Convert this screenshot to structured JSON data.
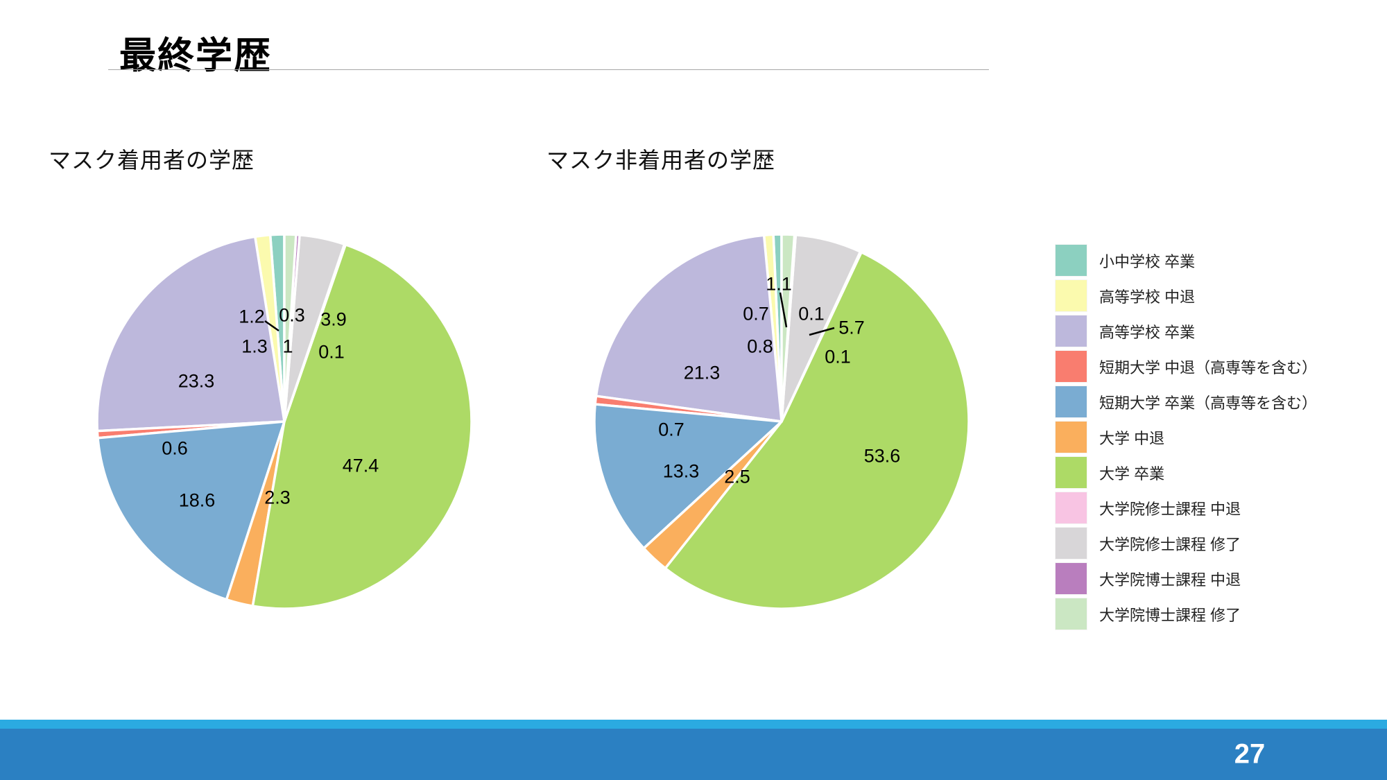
{
  "page": {
    "title": "最終学歴",
    "page_number": "27"
  },
  "chart_data": {
    "type": "pie",
    "legend_position": "right",
    "start_angle": "top",
    "direction": "counterclockwise",
    "categories": [
      "小中学校 卒業",
      "高等学校 中退",
      "高等学校 卒業",
      "短期大学 中退（高専等を含む）",
      "短期大学 卒業（高専等を含む）",
      "大学 中退",
      "大学 卒業",
      "大学院修士課程 中退",
      "大学院修士課程 修了",
      "大学院博士課程 中退",
      "大学院博士課程 修了"
    ],
    "colors": [
      "#8CD0C0",
      "#FBFAAE",
      "#BDB8DC",
      "#F97D6F",
      "#7AACD2",
      "#FAAF5D",
      "#ADDA66",
      "#F8C4E3",
      "#D8D6D8",
      "#B97EBE",
      "#CBE7C3"
    ],
    "pies": [
      {
        "title": "マスク着用者の学歴",
        "values": [
          1.2,
          1.3,
          23.3,
          0.6,
          18.6,
          2.3,
          47.4,
          0.1,
          3.9,
          0.3,
          1.0
        ],
        "display_labels": [
          "1.2",
          "1.3",
          "23.3",
          "0.6",
          "18.6",
          "2.3",
          "47.4",
          "0.1",
          "3.9",
          "0.3",
          "1"
        ]
      },
      {
        "title": "マスク非着用者の学歴",
        "values": [
          0.7,
          0.8,
          21.3,
          0.7,
          13.3,
          2.5,
          53.6,
          0.1,
          5.7,
          0.1,
          1.1
        ],
        "display_labels": [
          "0.7",
          "0.8",
          "21.3",
          "0.7",
          "13.3",
          "2.5",
          "53.6",
          "0.1",
          "5.7",
          "0.1",
          "1.1"
        ]
      }
    ]
  }
}
